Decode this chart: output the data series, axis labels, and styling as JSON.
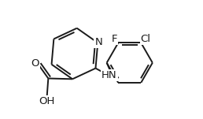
{
  "bg_color": "#ffffff",
  "line_color": "#1a1a1a",
  "bond_width": 1.4,
  "font_size": 9.5,
  "atoms": {
    "N_label": "N",
    "NH_label": "HN",
    "F_label": "F",
    "Cl_label": "Cl",
    "O_label": "O",
    "OH_label": "OH"
  },
  "xlim": [
    0.0,
    1.0
  ],
  "ylim": [
    0.05,
    0.95
  ]
}
